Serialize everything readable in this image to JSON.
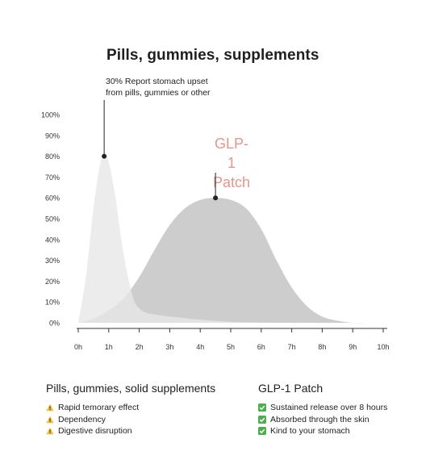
{
  "chart_data": {
    "type": "area",
    "title": "Pills, gummies, supplements",
    "xlabel": "",
    "ylabel": "",
    "x_ticks": [
      "0h",
      "1h",
      "2h",
      "3h",
      "4h",
      "5h",
      "6h",
      "7h",
      "8h",
      "9h",
      "10h"
    ],
    "y_ticks": [
      "0%",
      "10%",
      "20%",
      "30%",
      "40%",
      "50%",
      "60%",
      "70%",
      "80%",
      "90%",
      "100%"
    ],
    "xlim": [
      0,
      10
    ],
    "ylim": [
      0,
      100
    ],
    "grid": false,
    "series": [
      {
        "name": "Pills, gummies, solid supplements",
        "color": "#e7e7e7",
        "x": [
          0,
          0.25,
          0.5,
          0.7,
          0.85,
          1.0,
          1.2,
          1.5,
          1.8,
          2.0,
          2.2,
          2.5,
          3,
          4,
          5,
          6,
          7,
          8,
          9,
          10
        ],
        "y": [
          0,
          22,
          55,
          75,
          80,
          77,
          62,
          32,
          12,
          7,
          5,
          4,
          3,
          1.5,
          0.5,
          0.1,
          0,
          0,
          0,
          0
        ]
      },
      {
        "name": "GLP-1 Patch",
        "color": "#cdcdcd",
        "x": [
          0,
          0.5,
          1.0,
          1.5,
          2.0,
          2.5,
          3.0,
          3.5,
          4.0,
          4.5,
          5.0,
          5.5,
          6.0,
          6.5,
          7.0,
          7.5,
          8.0,
          8.5,
          9.0,
          9.5,
          10
        ],
        "y": [
          0,
          2,
          6,
          12,
          22,
          35,
          47,
          55,
          59,
          60,
          59,
          55,
          45,
          30,
          17,
          8,
          3,
          1,
          0,
          0,
          0
        ]
      }
    ],
    "markers": [
      {
        "series": 0,
        "x": 0.85,
        "y": 80
      },
      {
        "series": 1,
        "x": 4.5,
        "y": 60
      }
    ],
    "annotations": [
      "30% Report stomach upset\nfrom pills, gummies or other",
      "GLP-1\nPatch"
    ]
  },
  "annotation": {
    "line1": "30% Report stomach upset",
    "line2": "from pills, gummies or other"
  },
  "glp_label": {
    "line1": "GLP-1",
    "line2": "Patch"
  },
  "colors": {
    "accent": "#e8938a",
    "warning": "#f2c038",
    "check": "#4cae4c"
  },
  "legend": {
    "left": {
      "title": "Pills, gummies, solid supplements",
      "icon": "warning-icon",
      "items": [
        "Rapid temorary effect",
        "Dependency",
        "Digestive disruption"
      ]
    },
    "right": {
      "title": "GLP-1 Patch",
      "icon": "check-icon",
      "items": [
        "Sustained release over 8 hours",
        "Absorbed through the skin",
        "Kind to your stomach"
      ]
    }
  }
}
